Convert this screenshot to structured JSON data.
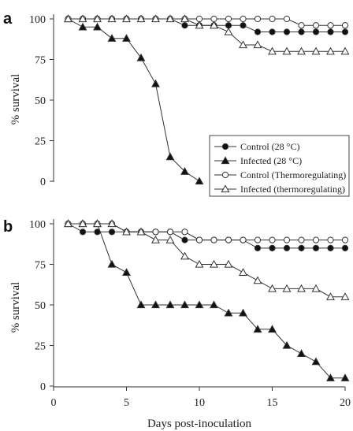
{
  "chart_data": [
    {
      "panel": "a",
      "type": "line",
      "title": "",
      "xlabel": "",
      "ylabel": "% survival",
      "xlim": [
        0,
        20
      ],
      "ylim": [
        0,
        100
      ],
      "yticks": [
        0,
        25,
        50,
        75,
        100
      ],
      "legend": "right",
      "series": [
        {
          "name": "Control (28 °C)",
          "marker": "circle-filled",
          "x": [
            1,
            2,
            3,
            4,
            5,
            6,
            7,
            8,
            9,
            10,
            11,
            12,
            13,
            14,
            15,
            16,
            17,
            18,
            19,
            20
          ],
          "y": [
            100,
            100,
            100,
            100,
            100,
            100,
            100,
            100,
            96,
            96,
            96,
            96,
            96,
            92,
            92,
            92,
            92,
            92,
            92,
            92
          ]
        },
        {
          "name": "Infected (28 °C)",
          "marker": "triangle-filled",
          "x": [
            1,
            2,
            3,
            4,
            5,
            6,
            7,
            8,
            9,
            10
          ],
          "y": [
            100,
            95,
            95,
            88,
            88,
            76,
            60,
            15,
            6,
            0
          ]
        },
        {
          "name": "Control (Thermoregulating)",
          "marker": "circle-open",
          "x": [
            1,
            2,
            3,
            4,
            5,
            6,
            7,
            8,
            9,
            10,
            11,
            12,
            13,
            14,
            15,
            16,
            17,
            18,
            19,
            20
          ],
          "y": [
            100,
            100,
            100,
            100,
            100,
            100,
            100,
            100,
            100,
            100,
            100,
            100,
            100,
            100,
            100,
            100,
            96,
            96,
            96,
            96
          ]
        },
        {
          "name": "Infected (thermoregulating)",
          "marker": "triangle-open",
          "x": [
            1,
            2,
            3,
            4,
            5,
            6,
            7,
            8,
            9,
            10,
            11,
            12,
            13,
            14,
            15,
            16,
            17,
            18,
            19,
            20
          ],
          "y": [
            100,
            100,
            100,
            100,
            100,
            100,
            100,
            100,
            100,
            96,
            96,
            92,
            84,
            84,
            80,
            80,
            80,
            80,
            80,
            80
          ]
        }
      ]
    },
    {
      "panel": "b",
      "type": "line",
      "title": "",
      "xlabel": "Days post-inoculation",
      "ylabel": "% survival",
      "xlim": [
        0,
        20
      ],
      "ylim": [
        0,
        100
      ],
      "xticks": [
        0,
        5,
        10,
        15,
        20
      ],
      "yticks": [
        0,
        25,
        50,
        75,
        100
      ],
      "series": [
        {
          "name": "Control (28 °C)",
          "marker": "circle-filled",
          "x": [
            1,
            2,
            3,
            4,
            5,
            6,
            7,
            8,
            9,
            10,
            11,
            12,
            13,
            14,
            15,
            16,
            17,
            18,
            19,
            20
          ],
          "y": [
            100,
            95,
            95,
            95,
            95,
            95,
            95,
            95,
            90,
            90,
            90,
            90,
            90,
            85,
            85,
            85,
            85,
            85,
            85,
            85
          ]
        },
        {
          "name": "Infected (28 °C)",
          "marker": "triangle-filled",
          "x": [
            1,
            2,
            3,
            4,
            5,
            6,
            7,
            8,
            9,
            10,
            11,
            12,
            13,
            14,
            15,
            16,
            17,
            18,
            19,
            20
          ],
          "y": [
            100,
            100,
            100,
            75,
            70,
            50,
            50,
            50,
            50,
            50,
            50,
            45,
            45,
            35,
            35,
            25,
            20,
            15,
            5,
            5
          ]
        },
        {
          "name": "Control (Thermoregulating)",
          "marker": "circle-open",
          "x": [
            1,
            2,
            3,
            4,
            5,
            6,
            7,
            8,
            9,
            10,
            11,
            12,
            13,
            14,
            15,
            16,
            17,
            18,
            19,
            20
          ],
          "y": [
            100,
            100,
            100,
            100,
            95,
            95,
            95,
            95,
            95,
            90,
            90,
            90,
            90,
            90,
            90,
            90,
            90,
            90,
            90,
            90
          ]
        },
        {
          "name": "Infected (thermoregulating)",
          "marker": "triangle-open",
          "x": [
            1,
            2,
            3,
            4,
            5,
            6,
            7,
            8,
            9,
            10,
            11,
            12,
            13,
            14,
            15,
            16,
            17,
            18,
            19,
            20
          ],
          "y": [
            100,
            100,
            100,
            100,
            95,
            95,
            90,
            90,
            80,
            75,
            75,
            75,
            70,
            65,
            60,
            60,
            60,
            60,
            55,
            55
          ]
        }
      ]
    }
  ]
}
